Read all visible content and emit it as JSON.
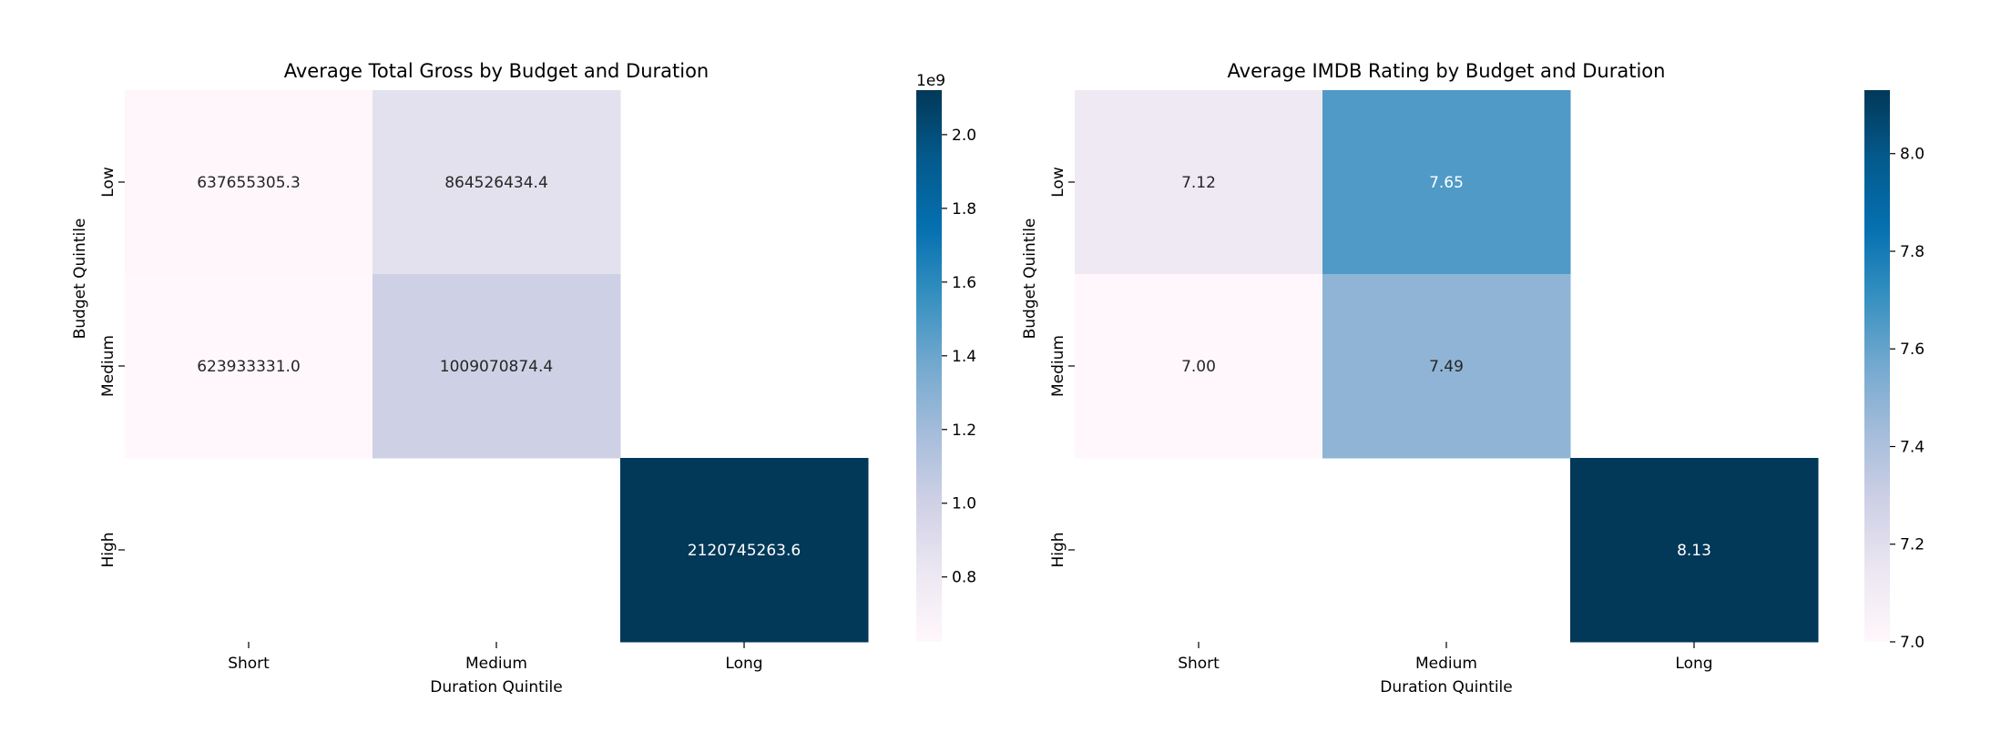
{
  "chart_data": [
    {
      "type": "heatmap",
      "title": "Average Total Gross by Budget and Duration",
      "xlabel": "Duration Quintile",
      "ylabel": "Budget Quintile",
      "x_categories": [
        "Short",
        "Medium",
        "Long"
      ],
      "y_categories": [
        "Low",
        "Medium",
        "High"
      ],
      "values": [
        [
          637655305.3,
          864526434.4,
          null
        ],
        [
          623933331.0,
          1009070874.4,
          null
        ],
        [
          null,
          null,
          2120745263.6
        ]
      ],
      "cell_labels": [
        [
          "637655305.3",
          "864526434.4",
          ""
        ],
        [
          "623933331.0",
          "1009070874.4",
          ""
        ],
        [
          "",
          "",
          "2120745263.6"
        ]
      ],
      "colorbar": {
        "min": 623933331.0,
        "max": 2120745263.6,
        "scale_factor": 1000000000,
        "offset_label": "1e9",
        "ticks": [
          0.8,
          1.0,
          1.2,
          1.4,
          1.6,
          1.8,
          2.0
        ],
        "tick_labels": [
          "0.8",
          "1.0",
          "1.2",
          "1.4",
          "1.6",
          "1.8",
          "2.0"
        ]
      }
    },
    {
      "type": "heatmap",
      "title": "Average IMDB Rating by Budget and Duration",
      "xlabel": "Duration Quintile",
      "ylabel": "Budget Quintile",
      "x_categories": [
        "Short",
        "Medium",
        "Long"
      ],
      "y_categories": [
        "Low",
        "Medium",
        "High"
      ],
      "values": [
        [
          7.12,
          7.65,
          null
        ],
        [
          7.0,
          7.49,
          null
        ],
        [
          null,
          null,
          8.13
        ]
      ],
      "cell_labels": [
        [
          "7.12",
          "7.65",
          ""
        ],
        [
          "7.00",
          "7.49",
          ""
        ],
        [
          "",
          "",
          "8.13"
        ]
      ],
      "colorbar": {
        "min": 7.0,
        "max": 8.13,
        "scale_factor": 1,
        "offset_label": "",
        "ticks": [
          7.0,
          7.2,
          7.4,
          7.6,
          7.8,
          8.0
        ],
        "tick_labels": [
          "7.0",
          "7.2",
          "7.4",
          "7.6",
          "7.8",
          "8.0"
        ]
      }
    }
  ],
  "colormap": [
    "#fff7fb",
    "#ece7f2",
    "#d0d1e6",
    "#a6bddb",
    "#74a9cf",
    "#3690c0",
    "#0570b0",
    "#045a8d",
    "#023858"
  ]
}
